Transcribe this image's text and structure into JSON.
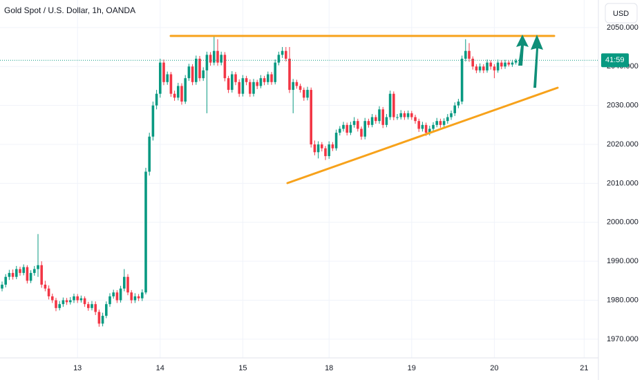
{
  "chart_data": {
    "type": "candlestick",
    "title": "Gold Spot / U.S. Dollar, 1h, OANDA",
    "currency": "USD",
    "countdown": "41:59",
    "up_color": "#089981",
    "down_color": "#f23645",
    "grid": true,
    "ylim": [
      1965.2,
      2057.07
    ],
    "yticks": [
      {
        "value": 1970,
        "label": "1970.000"
      },
      {
        "value": 1980,
        "label": "1980.000"
      },
      {
        "value": 1990,
        "label": "1990.000"
      },
      {
        "value": 2000,
        "label": "2000.000"
      },
      {
        "value": 2010,
        "label": "2010.000"
      },
      {
        "value": 2020,
        "label": "2020.000"
      },
      {
        "value": 2030,
        "label": "2030.000"
      },
      {
        "value": 2040,
        "label": "2040.000"
      },
      {
        "value": 2050,
        "label": "2050.000"
      }
    ],
    "categories": [
      null,
      null,
      null,
      null,
      null,
      null,
      null,
      null,
      null,
      null,
      null,
      null,
      null,
      null,
      null,
      null,
      null,
      null,
      null,
      null,
      null,
      "13",
      null,
      null,
      null,
      null,
      null,
      null,
      null,
      null,
      null,
      null,
      null,
      null,
      null,
      null,
      null,
      null,
      null,
      null,
      null,
      null,
      null,
      null,
      "14",
      null,
      null,
      null,
      null,
      null,
      null,
      null,
      null,
      null,
      null,
      null,
      null,
      null,
      null,
      null,
      null,
      null,
      null,
      null,
      null,
      null,
      null,
      "15",
      null,
      null,
      null,
      null,
      null,
      null,
      null,
      null,
      null,
      null,
      null,
      null,
      null,
      null,
      null,
      null,
      null,
      null,
      null,
      null,
      null,
      null,
      null,
      "18",
      null,
      null,
      null,
      null,
      null,
      null,
      null,
      null,
      null,
      null,
      null,
      null,
      null,
      null,
      null,
      null,
      null,
      null,
      null,
      null,
      null,
      null,
      "19",
      null,
      null,
      null,
      null,
      null,
      null,
      null,
      null,
      null,
      null,
      null,
      null,
      null,
      null,
      null,
      null,
      null,
      null,
      null,
      null,
      null,
      null,
      "20",
      null,
      null,
      null,
      null,
      null,
      null,
      null,
      null,
      null,
      null,
      null,
      null,
      null,
      null,
      null,
      null,
      null,
      null,
      null,
      null,
      null,
      null,
      null,
      null,
      "21",
      null,
      null,
      null
    ],
    "candles": [
      [
        1983,
        1984.8,
        1982.3,
        1984
      ],
      [
        1984,
        1986.7,
        1983.3,
        1986
      ],
      [
        1986,
        1987.8,
        1985.2,
        1987
      ],
      [
        1987,
        1987.9,
        1985.3,
        1986
      ],
      [
        1986,
        1988.8,
        1985.4,
        1988
      ],
      [
        1988,
        1988.6,
        1986.3,
        1987
      ],
      [
        1987,
        1989.2,
        1986.4,
        1988.5
      ],
      [
        1988.5,
        1989,
        1984.3,
        1985
      ],
      [
        1985,
        1987.7,
        1984.4,
        1987
      ],
      [
        1987,
        1988.8,
        1986.3,
        1988
      ],
      [
        1988,
        1997,
        1986,
        1989
      ],
      [
        1989,
        1990,
        1983.2,
        1984
      ],
      [
        1984,
        1985,
        1982.3,
        1983
      ],
      [
        1983,
        1983.8,
        1980.2,
        1981
      ],
      [
        1981,
        1981.7,
        1979.3,
        1980
      ],
      [
        1980,
        1980.6,
        1977.2,
        1978
      ],
      [
        1978,
        1979.8,
        1977.4,
        1979
      ],
      [
        1979,
        1980.7,
        1978.3,
        1980
      ],
      [
        1980,
        1980.6,
        1978.8,
        1979.5
      ],
      [
        1979.5,
        1980.8,
        1978.9,
        1980
      ],
      [
        1980,
        1981.7,
        1979.3,
        1981
      ],
      [
        1981,
        1981.6,
        1979.3,
        1980
      ],
      [
        1980,
        1981.2,
        1979.4,
        1980.5
      ],
      [
        1980.5,
        1981,
        1978.3,
        1979
      ],
      [
        1979,
        1979.6,
        1977.3,
        1978
      ],
      [
        1978,
        1979.8,
        1977.4,
        1979
      ],
      [
        1979,
        1979.7,
        1976.2,
        1977
      ],
      [
        1977,
        1977.6,
        1973.2,
        1974
      ],
      [
        1974,
        1976.8,
        1973.3,
        1976
      ],
      [
        1976,
        1979.7,
        1975.4,
        1979
      ],
      [
        1979,
        1981.8,
        1978.3,
        1981
      ],
      [
        1981,
        1982.7,
        1980.4,
        1982
      ],
      [
        1982,
        1982.6,
        1979.3,
        1980
      ],
      [
        1980,
        1983.7,
        1979.4,
        1983
      ],
      [
        1983,
        1988,
        1982.3,
        1986
      ],
      [
        1986,
        1986.7,
        1981.3,
        1982
      ],
      [
        1982,
        1982.6,
        1979.2,
        1980
      ],
      [
        1980,
        1981.8,
        1979.3,
        1981
      ],
      [
        1981,
        1981.6,
        1979.8,
        1980.5
      ],
      [
        1980.5,
        1982.8,
        1979.8,
        1982
      ],
      [
        1982,
        2014,
        1981.5,
        2013
      ],
      [
        2013,
        2023,
        2012,
        2022
      ],
      [
        2022,
        2031,
        2021,
        2030
      ],
      [
        2030,
        2034,
        2029,
        2033
      ],
      [
        2033,
        2042,
        2032,
        2041
      ],
      [
        2041,
        2041.8,
        2035.2,
        2036
      ],
      [
        2036,
        2038.7,
        2035.3,
        2038
      ],
      [
        2038,
        2038.6,
        2032.2,
        2033
      ],
      [
        2033,
        2033.8,
        2031.2,
        2032
      ],
      [
        2032,
        2035.8,
        2031.3,
        2035
      ],
      [
        2035,
        2035.7,
        2030.2,
        2031
      ],
      [
        2031,
        2037.8,
        2030.4,
        2037
      ],
      [
        2037,
        2040.7,
        2036.3,
        2040
      ],
      [
        2040,
        2040.6,
        2035.2,
        2036
      ],
      [
        2036,
        2042.8,
        2035.3,
        2042
      ],
      [
        2042,
        2042.7,
        2036.2,
        2037
      ],
      [
        2037,
        2039.8,
        2036.3,
        2039
      ],
      [
        2039,
        2043.8,
        2028,
        2043
      ],
      [
        2043,
        2043.7,
        2040.2,
        2041
      ],
      [
        2041,
        2048,
        2040.3,
        2044
      ],
      [
        2044,
        2047,
        2040.2,
        2041
      ],
      [
        2041,
        2043.8,
        2040.3,
        2043
      ],
      [
        2043,
        2043.7,
        2036.2,
        2037
      ],
      [
        2037,
        2037.6,
        2033.2,
        2034
      ],
      [
        2034,
        2038.8,
        2033.3,
        2038
      ],
      [
        2038,
        2038.6,
        2035.2,
        2036
      ],
      [
        2036,
        2036.7,
        2032.2,
        2033
      ],
      [
        2033,
        2037.8,
        2032.3,
        2037
      ],
      [
        2037,
        2037.6,
        2035.2,
        2036
      ],
      [
        2036,
        2036.7,
        2032.2,
        2033
      ],
      [
        2033,
        2036.8,
        2032.3,
        2036
      ],
      [
        2036,
        2036.6,
        2034.2,
        2035
      ],
      [
        2035,
        2037.8,
        2034.4,
        2037
      ],
      [
        2037,
        2037.6,
        2035.2,
        2036
      ],
      [
        2036,
        2038.7,
        2035.3,
        2038
      ],
      [
        2038,
        2038.6,
        2035.3,
        2036
      ],
      [
        2036,
        2041.8,
        2035.4,
        2041
      ],
      [
        2041,
        2043.8,
        2040.3,
        2043
      ],
      [
        2043,
        2045,
        2042.2,
        2044
      ],
      [
        2044,
        2045,
        2041.3,
        2042
      ],
      [
        2042,
        2045,
        2033.2,
        2034
      ],
      [
        2034,
        2036.8,
        2028,
        2036
      ],
      [
        2036,
        2036.6,
        2034.3,
        2035
      ],
      [
        2035,
        2035.6,
        2033.3,
        2034
      ],
      [
        2034,
        2034.6,
        2031.2,
        2032
      ],
      [
        2032,
        2034.8,
        2031.3,
        2034
      ],
      [
        2034,
        2034.6,
        2019.2,
        2020
      ],
      [
        2020,
        2021,
        2017.2,
        2018
      ],
      [
        2018,
        2020.8,
        2016.4,
        2020
      ],
      [
        2020,
        2020.6,
        2018.2,
        2019
      ],
      [
        2019,
        2019.6,
        2016,
        2017
      ],
      [
        2017,
        2020.8,
        2016.3,
        2020
      ],
      [
        2020,
        2020.6,
        2018.3,
        2019
      ],
      [
        2019,
        2023.8,
        2018.4,
        2023
      ],
      [
        2023,
        2024.7,
        2022.3,
        2024
      ],
      [
        2024,
        2025.8,
        2023.3,
        2025
      ],
      [
        2025,
        2025.6,
        2022.3,
        2023
      ],
      [
        2023,
        2025.8,
        2022.4,
        2025
      ],
      [
        2025,
        2027,
        2024.3,
        2026
      ],
      [
        2026,
        2026.6,
        2023.3,
        2024
      ],
      [
        2024,
        2024.6,
        2021.2,
        2022
      ],
      [
        2022,
        2026.8,
        2021.3,
        2026
      ],
      [
        2026,
        2026.6,
        2024.3,
        2025
      ],
      [
        2025,
        2027.8,
        2024.4,
        2027
      ],
      [
        2027,
        2027.6,
        2025.3,
        2026
      ],
      [
        2026,
        2029.8,
        2025.3,
        2029
      ],
      [
        2029,
        2029.6,
        2024.2,
        2025
      ],
      [
        2025,
        2027.8,
        2024.4,
        2027
      ],
      [
        2027,
        2033.8,
        2026.3,
        2033
      ],
      [
        2033,
        2033.6,
        2026.2,
        2027
      ],
      [
        2027,
        2027.8,
        2026.3,
        2027
      ],
      [
        2027,
        2028.8,
        2026.4,
        2028
      ],
      [
        2028,
        2028.6,
        2026.3,
        2027
      ],
      [
        2027,
        2028.7,
        2026.4,
        2028
      ],
      [
        2028,
        2028.6,
        2026.3,
        2027
      ],
      [
        2027,
        2027.6,
        2025.3,
        2026
      ],
      [
        2026,
        2026.6,
        2023.2,
        2024
      ],
      [
        2024,
        2025.8,
        2023.3,
        2025
      ],
      [
        2025,
        2025.6,
        2022.2,
        2023
      ],
      [
        2023,
        2024.8,
        2022.3,
        2024
      ],
      [
        2024,
        2025.7,
        2023.3,
        2025
      ],
      [
        2025,
        2026.8,
        2024.4,
        2026
      ],
      [
        2026,
        2026.6,
        2024.3,
        2025
      ],
      [
        2025,
        2026.7,
        2024.4,
        2026
      ],
      [
        2026,
        2027.8,
        2025.3,
        2027
      ],
      [
        2027,
        2028.7,
        2026.3,
        2028
      ],
      [
        2028,
        2030.8,
        2027.3,
        2030
      ],
      [
        2030,
        2031.7,
        2029.3,
        2031
      ],
      [
        2031,
        2042.8,
        2030.3,
        2042
      ],
      [
        2042,
        2047,
        2041.3,
        2044
      ],
      [
        2044,
        2046,
        2041.2,
        2042
      ],
      [
        2042,
        2042.6,
        2039.2,
        2040
      ],
      [
        2040,
        2040.6,
        2038.3,
        2039
      ],
      [
        2039,
        2040.8,
        2038.4,
        2040
      ],
      [
        2040,
        2040.6,
        2038.3,
        2039
      ],
      [
        2039,
        2041.8,
        2038.4,
        2041
      ],
      [
        2041,
        2041.6,
        2039.2,
        2040
      ],
      [
        2040,
        2040.6,
        2037,
        2039
      ],
      [
        2039,
        2041.8,
        2038.4,
        2041
      ],
      [
        2041,
        2041.6,
        2039.3,
        2040
      ],
      [
        2040,
        2041.7,
        2039.4,
        2041
      ],
      [
        2041,
        2041.5,
        2040,
        2040.5
      ],
      [
        2040.5,
        2041.7,
        2039.9,
        2041
      ],
      [
        2041,
        2042,
        2040.5,
        2041.5
      ],
      [
        2041.5,
        2042,
        2040.9,
        2041.6
      ],
      null,
      null,
      null,
      null,
      null,
      null,
      null,
      null,
      null,
      null,
      null,
      null,
      null,
      null,
      null,
      null,
      null,
      null,
      null,
      null,
      null
    ]
  }
}
